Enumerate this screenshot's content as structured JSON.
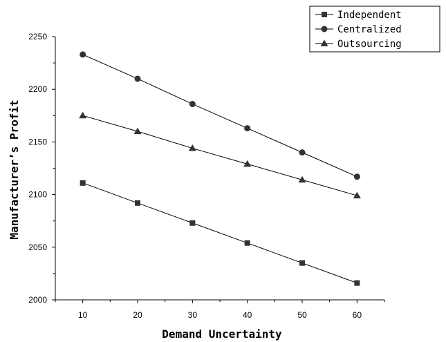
{
  "chart_data": {
    "type": "line",
    "xlabel": "Demand Uncertainty",
    "ylabel": "Manufacturer’s Profit",
    "x": [
      10,
      20,
      30,
      40,
      50,
      60
    ],
    "xlim": [
      5,
      65
    ],
    "ylim": [
      2000,
      2250
    ],
    "xticks": [
      "10",
      "20",
      "30",
      "40",
      "50",
      "60"
    ],
    "yticks": [
      "2000",
      "2050",
      "2100",
      "2150",
      "2200",
      "2250"
    ],
    "grid": false,
    "legend_position": "top-right",
    "series": [
      {
        "name": "Independent",
        "marker": "square",
        "values": [
          2111,
          2092,
          2073,
          2054,
          2035,
          2016
        ]
      },
      {
        "name": "Centralized",
        "marker": "circle",
        "values": [
          2233,
          2210,
          2186,
          2163,
          2140,
          2117
        ]
      },
      {
        "name": "Outsourcing",
        "marker": "triangle",
        "values": [
          2175,
          2160,
          2144,
          2129,
          2114,
          2099
        ]
      }
    ],
    "colors": {
      "line": "#000000",
      "marker": "#333333"
    }
  }
}
